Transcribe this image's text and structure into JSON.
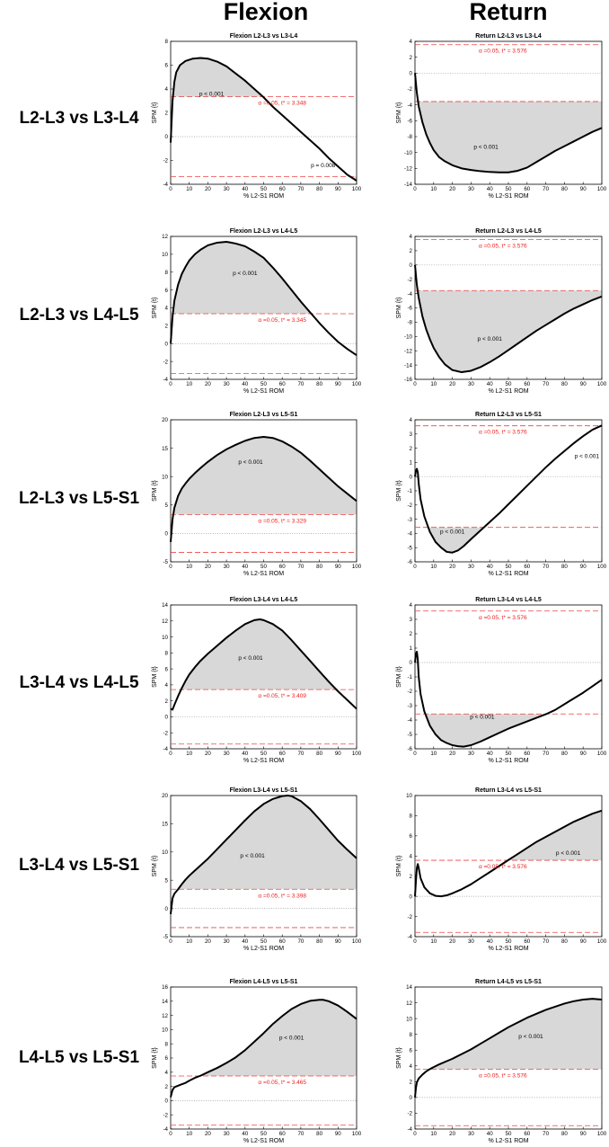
{
  "column_headers": [
    "Flexion",
    "Return"
  ],
  "row_labels": [
    "L2-L3 vs L3-L4",
    "L2-L3 vs L4-L5",
    "L2-L3 vs L5-S1",
    "L3-L4 vs L4-L5",
    "L3-L4 vs L5-S1",
    "L4-L5 vs L5-S1"
  ],
  "colors": {
    "curve": "#000000",
    "fill": "#d8d8d8",
    "threshold": "#ee4444",
    "threshold_text": "#ee1c1c",
    "zero": "#999999"
  },
  "chart_data": [
    {
      "type": "line",
      "title": "Flexion L2-L3 vs L3-L4",
      "xlabel": "% L2-S1 ROM",
      "ylabel": "SPM {t}",
      "xlim": [
        0,
        100
      ],
      "ylim": [
        -4,
        8
      ],
      "yticks": [
        -4,
        -2,
        0,
        2,
        4,
        6,
        8
      ],
      "xticks": [
        0,
        10,
        20,
        30,
        40,
        50,
        60,
        70,
        80,
        90,
        100
      ],
      "threshold": 3.348,
      "threshold_label": "α =0.05,    t* = 3.348",
      "x": [
        0,
        1,
        2,
        3,
        5,
        8,
        12,
        16,
        20,
        25,
        30,
        35,
        40,
        45,
        50,
        55,
        60,
        65,
        70,
        75,
        80,
        85,
        90,
        95,
        100
      ],
      "y": [
        -0.5,
        3.0,
        4.6,
        5.4,
        6.0,
        6.35,
        6.55,
        6.6,
        6.55,
        6.3,
        5.9,
        5.3,
        4.7,
        4.0,
        3.3,
        2.5,
        1.8,
        1.1,
        0.4,
        -0.3,
        -1.0,
        -1.8,
        -2.5,
        -3.2,
        -3.7
      ],
      "clusters": [
        {
          "p_label": "p < 0.001",
          "side": "upper"
        },
        {
          "p_label": "p = 0.008",
          "side": "lower"
        }
      ]
    },
    {
      "type": "line",
      "title": "Return L2-L3 vs L3-L4",
      "xlabel": "% L2-S1 ROM",
      "ylabel": "SPM {t}",
      "xlim": [
        0,
        100
      ],
      "ylim": [
        -14,
        4
      ],
      "yticks": [
        -14,
        -12,
        -10,
        -8,
        -6,
        -4,
        -2,
        0,
        2,
        4
      ],
      "xticks": [
        0,
        10,
        20,
        30,
        40,
        50,
        60,
        70,
        80,
        90,
        100
      ],
      "threshold": 3.576,
      "threshold_label": "α =0.05,    t* = 3.576",
      "x": [
        0,
        1,
        2,
        4,
        6,
        8,
        10,
        13,
        16,
        20,
        25,
        30,
        35,
        40,
        45,
        50,
        55,
        60,
        65,
        70,
        75,
        80,
        85,
        90,
        95,
        100
      ],
      "y": [
        0,
        -2.5,
        -4.2,
        -6.2,
        -7.7,
        -8.8,
        -9.7,
        -10.6,
        -11.1,
        -11.6,
        -12.0,
        -12.2,
        -12.35,
        -12.45,
        -12.5,
        -12.5,
        -12.3,
        -11.9,
        -11.2,
        -10.5,
        -9.8,
        -9.2,
        -8.6,
        -8.0,
        -7.4,
        -6.9
      ],
      "clusters": [
        {
          "p_label": "p < 0.001",
          "side": "lower"
        }
      ]
    },
    {
      "type": "line",
      "title": "Flexion L2-L3 vs L4-L5",
      "xlabel": "% L2-S1 ROM",
      "ylabel": "SPM {t}",
      "xlim": [
        0,
        100
      ],
      "ylim": [
        -4,
        12
      ],
      "yticks": [
        -4,
        -2,
        0,
        2,
        4,
        6,
        8,
        10,
        12
      ],
      "xticks": [
        0,
        10,
        20,
        30,
        40,
        50,
        60,
        70,
        80,
        90,
        100
      ],
      "threshold": 3.345,
      "threshold_label": "α =0.05,    t* = 3.345",
      "x": [
        0,
        1,
        2,
        4,
        6,
        8,
        10,
        13,
        16,
        20,
        25,
        30,
        35,
        40,
        45,
        50,
        55,
        60,
        65,
        70,
        75,
        80,
        85,
        90,
        95,
        100
      ],
      "y": [
        0,
        3.0,
        4.8,
        6.6,
        7.8,
        8.6,
        9.3,
        10.0,
        10.5,
        11.0,
        11.3,
        11.4,
        11.2,
        10.9,
        10.3,
        9.6,
        8.5,
        7.3,
        6.0,
        4.7,
        3.5,
        2.3,
        1.2,
        0.2,
        -0.6,
        -1.3
      ],
      "clusters": [
        {
          "p_label": "p < 0.001",
          "side": "upper"
        }
      ]
    },
    {
      "type": "line",
      "title": "Return L2-L3 vs L4-L5",
      "xlabel": "% L2-S1 ROM",
      "ylabel": "SPM {t}",
      "xlim": [
        0,
        100
      ],
      "ylim": [
        -16,
        4
      ],
      "yticks": [
        -16,
        -14,
        -12,
        -10,
        -8,
        -6,
        -4,
        -2,
        0,
        2,
        4
      ],
      "xticks": [
        0,
        10,
        20,
        30,
        40,
        50,
        60,
        70,
        80,
        90,
        100
      ],
      "threshold": 3.576,
      "threshold_label": "α =0.05,    t* = 3.576",
      "x": [
        0,
        1,
        2,
        4,
        6,
        8,
        10,
        13,
        16,
        20,
        25,
        30,
        35,
        40,
        45,
        50,
        55,
        60,
        65,
        70,
        75,
        80,
        85,
        90,
        95,
        100
      ],
      "y": [
        0,
        -2.8,
        -4.6,
        -7.2,
        -9.0,
        -10.4,
        -11.6,
        -12.9,
        -13.9,
        -14.7,
        -15.0,
        -14.8,
        -14.3,
        -13.6,
        -12.8,
        -11.9,
        -11.0,
        -10.1,
        -9.2,
        -8.4,
        -7.6,
        -6.8,
        -6.1,
        -5.5,
        -4.9,
        -4.4
      ],
      "clusters": [
        {
          "p_label": "p < 0.001",
          "side": "lower"
        }
      ]
    },
    {
      "type": "line",
      "title": "Flexion L2-L3 vs L5-S1",
      "xlabel": "% L2-S1 ROM",
      "ylabel": "SPM {t}",
      "xlim": [
        0,
        100
      ],
      "ylim": [
        -5,
        20
      ],
      "yticks": [
        -5,
        0,
        5,
        10,
        15,
        20
      ],
      "xticks": [
        0,
        10,
        20,
        30,
        40,
        50,
        60,
        70,
        80,
        90,
        100
      ],
      "threshold": 3.329,
      "threshold_label": "α =0.05,    t* = 3.329",
      "x": [
        0,
        1,
        2,
        4,
        6,
        8,
        10,
        13,
        16,
        20,
        25,
        30,
        35,
        40,
        45,
        50,
        55,
        60,
        65,
        70,
        75,
        80,
        85,
        90,
        95,
        100
      ],
      "y": [
        -1.5,
        2.5,
        4.5,
        6.6,
        7.9,
        8.8,
        9.6,
        10.6,
        11.5,
        12.6,
        13.8,
        14.8,
        15.6,
        16.3,
        16.8,
        17.0,
        16.8,
        16.2,
        15.3,
        14.2,
        12.8,
        11.3,
        9.8,
        8.3,
        7.0,
        5.7
      ],
      "clusters": [
        {
          "p_label": "p < 0.001",
          "side": "upper"
        }
      ]
    },
    {
      "type": "line",
      "title": "Return L2-L3 vs L5-S1",
      "xlabel": "% L2-S1 ROM",
      "ylabel": "SPM {t}",
      "xlim": [
        0,
        100
      ],
      "ylim": [
        -6,
        4
      ],
      "yticks": [
        -6,
        -5,
        -4,
        -3,
        -2,
        -1,
        0,
        1,
        2,
        3,
        4
      ],
      "xticks": [
        0,
        10,
        20,
        30,
        40,
        50,
        60,
        70,
        80,
        90,
        100
      ],
      "threshold": 3.576,
      "threshold_label": "α =0.05,    t* = 3.576",
      "x": [
        0,
        0.5,
        1,
        1.5,
        2,
        3,
        5,
        8,
        11,
        14,
        17,
        20,
        23,
        26,
        30,
        35,
        40,
        45,
        50,
        55,
        60,
        65,
        70,
        75,
        80,
        85,
        90,
        95,
        100
      ],
      "y": [
        0,
        0.4,
        0.55,
        0.3,
        -0.5,
        -1.6,
        -2.8,
        -3.9,
        -4.6,
        -5.0,
        -5.3,
        -5.35,
        -5.2,
        -4.9,
        -4.4,
        -3.8,
        -3.2,
        -2.6,
        -1.95,
        -1.3,
        -0.65,
        0,
        0.65,
        1.25,
        1.8,
        2.35,
        2.85,
        3.3,
        3.6
      ],
      "clusters": [
        {
          "p_label": "p < 0.001",
          "side": "lower"
        },
        {
          "p_label": "p < 0.001",
          "side": "upper"
        }
      ]
    },
    {
      "type": "line",
      "title": "Flexion L3-L4 vs L4-L5",
      "xlabel": "% L2-S1 ROM",
      "ylabel": "SPM {t}",
      "xlim": [
        0,
        100
      ],
      "ylim": [
        -4,
        14
      ],
      "yticks": [
        -4,
        -2,
        0,
        2,
        4,
        6,
        8,
        10,
        12,
        14
      ],
      "xticks": [
        0,
        10,
        20,
        30,
        40,
        50,
        60,
        70,
        80,
        90,
        100
      ],
      "threshold": 3.409,
      "threshold_label": "α =0.05,    t* = 3.409",
      "x": [
        0,
        1,
        2,
        4,
        6,
        8,
        10,
        13,
        16,
        20,
        25,
        30,
        35,
        40,
        45,
        48,
        50,
        55,
        60,
        65,
        70,
        75,
        80,
        85,
        90,
        95,
        100
      ],
      "y": [
        1.0,
        0.9,
        1.5,
        2.6,
        3.6,
        4.5,
        5.3,
        6.2,
        7.0,
        7.9,
        8.9,
        9.9,
        10.8,
        11.6,
        12.1,
        12.2,
        12.1,
        11.6,
        10.8,
        9.6,
        8.3,
        7.0,
        5.7,
        4.4,
        3.2,
        2.1,
        1.0
      ],
      "clusters": [
        {
          "p_label": "p < 0.001",
          "side": "upper"
        }
      ]
    },
    {
      "type": "line",
      "title": "Return L3-L4 vs L4-L5",
      "xlabel": "% L2-S1 ROM",
      "ylabel": "SPM {t}",
      "xlim": [
        0,
        100
      ],
      "ylim": [
        -6,
        4
      ],
      "yticks": [
        -6,
        -5,
        -4,
        -3,
        -2,
        -1,
        0,
        1,
        2,
        3,
        4
      ],
      "xticks": [
        0,
        10,
        20,
        30,
        40,
        50,
        60,
        70,
        80,
        90,
        100
      ],
      "threshold": 3.576,
      "threshold_label": "α =0.05,    t* = 3.576",
      "x": [
        0,
        0.5,
        1,
        1.5,
        2,
        3,
        5,
        8,
        11,
        14,
        17,
        20,
        23,
        26,
        30,
        35,
        40,
        45,
        50,
        55,
        60,
        65,
        70,
        75,
        80,
        85,
        90,
        95,
        100
      ],
      "y": [
        0,
        0.6,
        0.75,
        0.2,
        -1.0,
        -2.2,
        -3.4,
        -4.4,
        -5.0,
        -5.4,
        -5.6,
        -5.75,
        -5.82,
        -5.85,
        -5.75,
        -5.5,
        -5.2,
        -4.9,
        -4.6,
        -4.35,
        -4.1,
        -3.85,
        -3.6,
        -3.3,
        -2.9,
        -2.5,
        -2.1,
        -1.65,
        -1.2
      ],
      "clusters": [
        {
          "p_label": "p < 0.001",
          "side": "lower"
        }
      ]
    },
    {
      "type": "line",
      "title": "Flexion L3-L4 vs L5-S1",
      "xlabel": "% L2-S1 ROM",
      "ylabel": "SPM {t}",
      "xlim": [
        0,
        100
      ],
      "ylim": [
        -5,
        20
      ],
      "yticks": [
        -5,
        0,
        5,
        10,
        15,
        20
      ],
      "xticks": [
        0,
        10,
        20,
        30,
        40,
        50,
        60,
        70,
        80,
        90,
        100
      ],
      "threshold": 3.398,
      "threshold_label": "α =0.05,    t* = 3.398",
      "x": [
        0,
        1,
        2,
        4,
        6,
        8,
        10,
        13,
        16,
        20,
        25,
        30,
        35,
        40,
        45,
        50,
        55,
        60,
        63,
        65,
        70,
        75,
        80,
        85,
        90,
        95,
        100
      ],
      "y": [
        -1.0,
        1.8,
        2.6,
        3.4,
        4.3,
        5.1,
        5.8,
        6.7,
        7.6,
        8.8,
        10.5,
        12.2,
        13.9,
        15.6,
        17.2,
        18.5,
        19.4,
        19.9,
        20.0,
        19.9,
        19.0,
        17.6,
        15.8,
        13.9,
        12.0,
        10.4,
        8.9
      ],
      "clusters": [
        {
          "p_label": "p < 0.001",
          "side": "upper"
        }
      ]
    },
    {
      "type": "line",
      "title": "Return L3-L4 vs L5-S1",
      "xlabel": "% L2-S1 ROM",
      "ylabel": "SPM {t}",
      "xlim": [
        0,
        100
      ],
      "ylim": [
        -4,
        10
      ],
      "yticks": [
        -4,
        -2,
        0,
        2,
        4,
        6,
        8,
        10
      ],
      "xticks": [
        0,
        10,
        20,
        30,
        40,
        50,
        60,
        70,
        80,
        90,
        100
      ],
      "threshold": 3.576,
      "threshold_label": "α =0.05,    t* = 3.576",
      "x": [
        0,
        0.5,
        1,
        1.5,
        2,
        3,
        5,
        8,
        11,
        14,
        17,
        20,
        25,
        30,
        35,
        40,
        45,
        50,
        55,
        60,
        65,
        70,
        75,
        80,
        85,
        90,
        95,
        100
      ],
      "y": [
        0,
        1.5,
        2.8,
        3.2,
        2.8,
        1.8,
        0.9,
        0.3,
        0.05,
        0.0,
        0.1,
        0.3,
        0.7,
        1.2,
        1.8,
        2.4,
        3.0,
        3.6,
        4.2,
        4.8,
        5.4,
        5.9,
        6.4,
        6.9,
        7.4,
        7.8,
        8.2,
        8.5
      ],
      "clusters": [
        {
          "p_label": "p < 0.001",
          "side": "upper"
        }
      ]
    },
    {
      "type": "line",
      "title": "Flexion L4-L5 vs L5-S1",
      "xlabel": "% L2-S1 ROM",
      "ylabel": "SPM {t}",
      "xlim": [
        0,
        100
      ],
      "ylim": [
        -4,
        16
      ],
      "yticks": [
        -4,
        -2,
        0,
        2,
        4,
        6,
        8,
        10,
        12,
        14,
        16
      ],
      "xticks": [
        0,
        10,
        20,
        30,
        40,
        50,
        60,
        70,
        80,
        90,
        100
      ],
      "threshold": 3.465,
      "threshold_label": "α =0.05,    t* = 3.465",
      "x": [
        0,
        1,
        2,
        4,
        6,
        8,
        10,
        13,
        16,
        20,
        25,
        30,
        35,
        40,
        45,
        50,
        55,
        60,
        65,
        70,
        75,
        80,
        82,
        85,
        90,
        95,
        100
      ],
      "y": [
        0.5,
        1.5,
        1.9,
        2.1,
        2.3,
        2.5,
        2.8,
        3.2,
        3.5,
        4.0,
        4.6,
        5.3,
        6.1,
        7.1,
        8.3,
        9.5,
        10.8,
        11.9,
        12.9,
        13.6,
        14.05,
        14.2,
        14.2,
        14.0,
        13.4,
        12.5,
        11.5
      ],
      "clusters": [
        {
          "p_label": "p < 0.001",
          "side": "upper"
        }
      ]
    },
    {
      "type": "line",
      "title": "Return L4-L5 vs L5-S1",
      "xlabel": "% L2-S1 ROM",
      "ylabel": "SPM {t}",
      "xlim": [
        0,
        100
      ],
      "ylim": [
        -4,
        14
      ],
      "yticks": [
        -4,
        -2,
        0,
        2,
        4,
        6,
        8,
        10,
        12,
        14
      ],
      "xticks": [
        0,
        10,
        20,
        30,
        40,
        50,
        60,
        70,
        80,
        90,
        100
      ],
      "threshold": 3.576,
      "threshold_label": "α =0.05,    t* = 3.576",
      "x": [
        0,
        0.5,
        1,
        2,
        4,
        6,
        8,
        10,
        13,
        16,
        20,
        25,
        30,
        35,
        40,
        45,
        50,
        55,
        60,
        65,
        70,
        75,
        80,
        85,
        90,
        95,
        100
      ],
      "y": [
        0,
        1.2,
        1.9,
        2.4,
        2.9,
        3.3,
        3.6,
        3.85,
        4.2,
        4.5,
        4.9,
        5.5,
        6.1,
        6.8,
        7.5,
        8.2,
        8.9,
        9.5,
        10.1,
        10.6,
        11.1,
        11.5,
        11.9,
        12.2,
        12.4,
        12.5,
        12.4
      ],
      "clusters": [
        {
          "p_label": "p < 0.001",
          "side": "upper"
        }
      ]
    }
  ]
}
